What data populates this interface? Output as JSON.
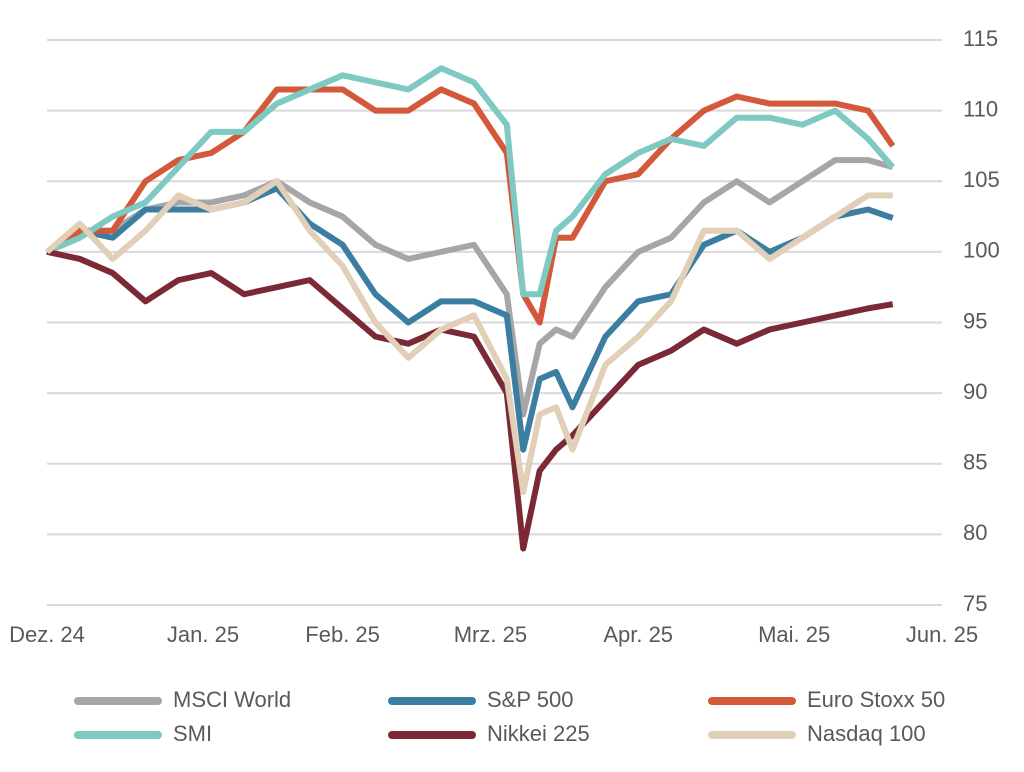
{
  "chart_data": {
    "type": "line",
    "x": [
      0,
      4,
      8,
      12,
      16,
      20,
      24,
      28,
      32,
      36,
      40,
      44,
      48,
      52,
      56,
      58,
      60,
      62,
      64,
      68,
      72,
      76,
      80,
      84,
      88,
      92,
      96,
      100,
      103
    ],
    "xlim": [
      0,
      109
    ],
    "xticks": [
      {
        "value": 0,
        "label": "Dez. 24"
      },
      {
        "value": 19,
        "label": "Jan. 25"
      },
      {
        "value": 36,
        "label": "Feb. 25"
      },
      {
        "value": 54,
        "label": "Mrz. 25"
      },
      {
        "value": 72,
        "label": "Apr. 25"
      },
      {
        "value": 91,
        "label": "Mai. 25"
      },
      {
        "value": 109,
        "label": "Jun. 25"
      }
    ],
    "ylim": [
      75,
      115
    ],
    "yticks": [
      75,
      80,
      85,
      90,
      95,
      100,
      105,
      110,
      115
    ],
    "grid": true,
    "legend": "bottom",
    "series": [
      {
        "name": "MSCI World",
        "color": "#a6a6a6",
        "values": [
          100,
          101.5,
          101.5,
          103,
          103.5,
          103.5,
          104,
          105,
          103.5,
          102.5,
          100.5,
          99.5,
          100,
          100.5,
          97,
          88.5,
          93.5,
          94.5,
          94,
          97.5,
          100,
          101,
          103.5,
          105,
          103.5,
          105,
          106.5,
          106.5,
          106
        ]
      },
      {
        "name": "S&P 500",
        "color": "#3b7ea1",
        "values": [
          100,
          101.5,
          101,
          103,
          103,
          103,
          103.5,
          104.5,
          102,
          100.5,
          97,
          95,
          96.5,
          96.5,
          95.5,
          86,
          91,
          91.5,
          89,
          94,
          96.5,
          97,
          100.5,
          101.5,
          100,
          101,
          102.5,
          103,
          102.4
        ]
      },
      {
        "name": "Euro Stoxx 50",
        "color": "#d4583a",
        "values": [
          100,
          101.5,
          101.5,
          105,
          106.5,
          107,
          108.5,
          111.5,
          111.5,
          111.5,
          110,
          110,
          111.5,
          110.5,
          107,
          97,
          95,
          101,
          101,
          105,
          105.5,
          108,
          110,
          111,
          110.5,
          110.5,
          110.5,
          110,
          107.5
        ]
      },
      {
        "name": "SMI",
        "color": "#7ec9c1",
        "values": [
          100,
          101,
          102.5,
          103.5,
          106,
          108.5,
          108.5,
          110.5,
          111.5,
          112.5,
          112,
          111.5,
          113,
          112,
          109,
          97,
          97,
          101.5,
          102.5,
          105.5,
          107,
          108,
          107.5,
          109.5,
          109.5,
          109,
          110,
          108,
          106
        ]
      },
      {
        "name": "Nikkei 225",
        "color": "#7b2a35",
        "values": [
          100,
          99.5,
          98.5,
          96.5,
          98,
          98.5,
          97,
          97.5,
          98,
          96,
          94,
          93.5,
          94.5,
          94,
          90,
          79,
          84.5,
          86,
          87,
          89.5,
          92,
          93,
          94.5,
          93.5,
          94.5,
          95,
          95.5,
          96,
          96.3
        ]
      },
      {
        "name": "Nasdaq 100",
        "color": "#e2cfb8",
        "values": [
          100,
          102,
          99.5,
          101.5,
          104,
          103,
          103.5,
          105,
          101.5,
          99,
          95,
          92.5,
          94.5,
          95.5,
          91,
          83,
          88.5,
          89,
          86,
          92,
          94,
          96.5,
          101.5,
          101.5,
          99.5,
          101,
          102.5,
          104,
          104
        ]
      }
    ]
  }
}
